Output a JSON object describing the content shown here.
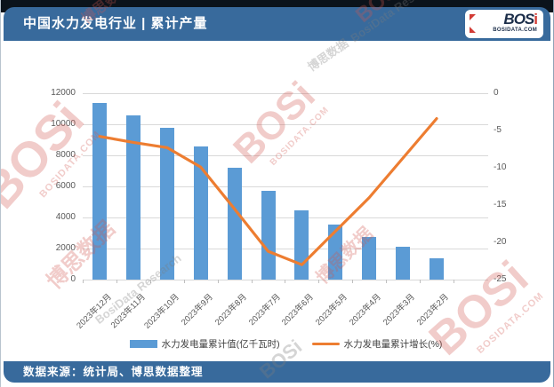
{
  "header": {
    "title": "中国水力发电行业 | 累计产量",
    "logo": {
      "text_main": "BOS",
      "text_accent": "i",
      "domain": "BOSIDATA.COM"
    }
  },
  "footer": {
    "source": "数据来源：统计局、博思数据整理"
  },
  "watermark": {
    "logo": "BOSi",
    "domain": "BOSIDATA.COM",
    "cn": "博思数据",
    "en": "BosiData Research"
  },
  "chart_data": {
    "type": "combo-bar-line",
    "categories": [
      "2023年12月",
      "2023年11月",
      "2023年10月",
      "2023年9月",
      "2023年8月",
      "2023年7月",
      "2023年6月",
      "2023年5月",
      "2023年4月",
      "2023年3月",
      "2023年2月"
    ],
    "series": [
      {
        "name": "水力发电量累计值(亿千瓦时)",
        "type": "bar",
        "axis": "left",
        "color": "#5b9bd5",
        "values": [
          11350,
          10600,
          9790,
          8570,
          7180,
          5710,
          4480,
          3520,
          2720,
          2110,
          1400
        ]
      },
      {
        "name": "水力发电量累计增长(%)",
        "type": "line",
        "axis": "right",
        "color": "#ed7d31",
        "values": [
          -5.8,
          -6.6,
          -7.3,
          -9.9,
          -15.5,
          -21.2,
          -23.0,
          -18.5,
          -14.0,
          -8.7,
          -3.4
        ]
      }
    ],
    "left_axis": {
      "min": 0,
      "max": 12000,
      "step": 2000,
      "ticks": [
        "12000",
        "10000",
        "8000",
        "6000",
        "4000",
        "2000",
        "0"
      ]
    },
    "right_axis": {
      "min": -25,
      "max": 0,
      "step": 5,
      "ticks": [
        "0",
        "-5",
        "-10",
        "-15",
        "-20",
        "-25"
      ]
    },
    "grid": "horizontal",
    "legend_position": "bottom"
  }
}
